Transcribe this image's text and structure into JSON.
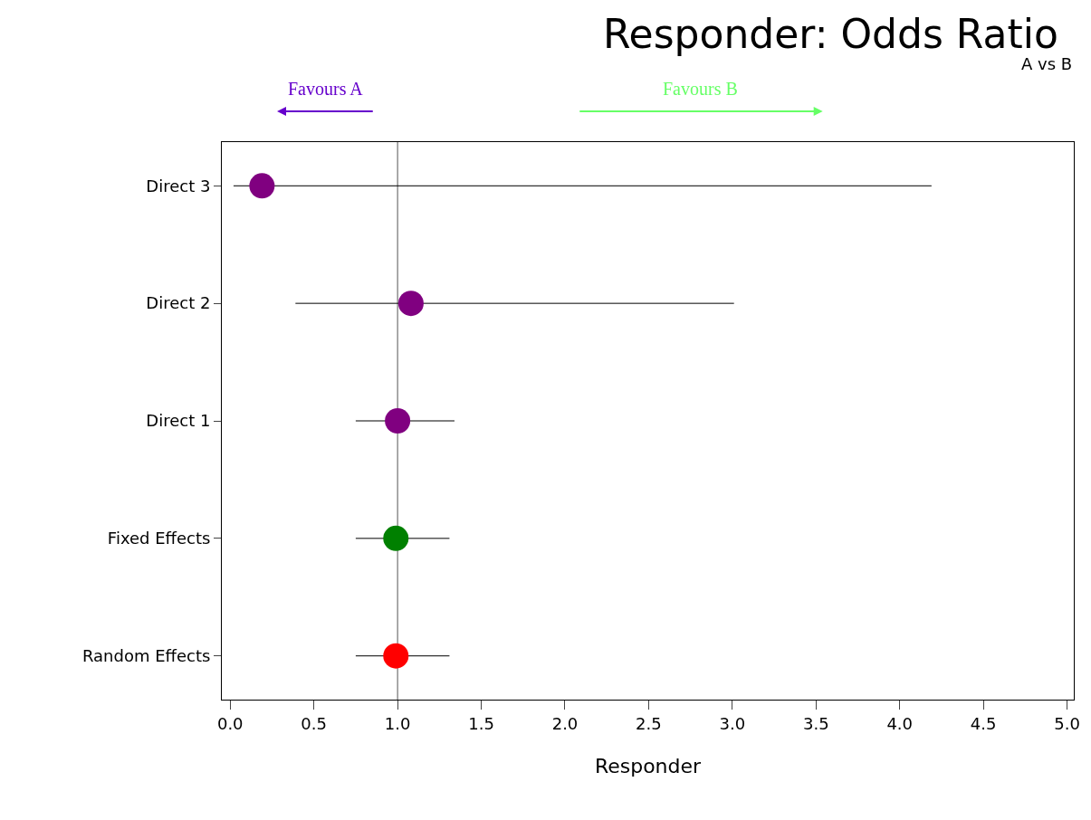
{
  "chart_data": {
    "type": "scatter",
    "title": "Responder: Odds Ratio",
    "subtitle": "A vs B",
    "xlabel": "Responder",
    "categories": [
      "Direct 3",
      "Direct 2",
      "Direct 1",
      "Fixed Effects",
      "Random Effects"
    ],
    "values": [
      0.19,
      1.08,
      1.0,
      0.99,
      0.99
    ],
    "colors": [
      "#800080",
      "#800080",
      "#800080",
      "#008000",
      "#ff0000"
    ],
    "errors": [
      [
        0.02,
        4.19
      ],
      [
        0.39,
        3.01
      ],
      [
        0.75,
        1.34
      ],
      [
        0.75,
        1.31
      ],
      [
        0.75,
        1.31
      ]
    ],
    "orientation": "horizontal",
    "xlim": [
      -0.05,
      5.04
    ],
    "xticks": [
      {
        "value": 0,
        "label": "0.0"
      },
      0.5,
      {
        "value": 1,
        "label": "1.0"
      },
      1.5,
      {
        "value": 2,
        "label": "2.0"
      },
      2.5,
      {
        "value": 3,
        "label": "3.0"
      },
      3.5,
      {
        "value": 4,
        "label": "4.0"
      },
      4.5,
      {
        "value": 5,
        "label": "5.0"
      }
    ],
    "ref_lines": [
      {
        "axis": "x",
        "value": 1,
        "color": "#555555"
      }
    ],
    "annotations": [
      "Favours A",
      "Favours B"
    ],
    "marker": "circle",
    "grid": false,
    "legend": false
  }
}
